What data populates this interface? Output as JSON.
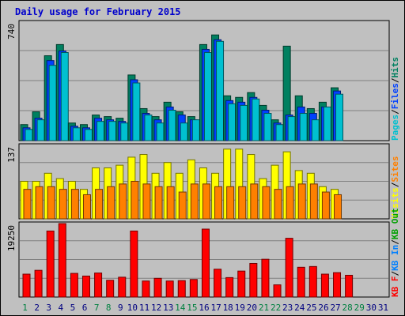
{
  "title": "Daily usage for February 2015",
  "colors": {
    "background": "#c0c0c0",
    "title": "#0000cc",
    "pages": "#00c0d0",
    "files": "#0040ff",
    "hits": "#008060",
    "visits": "#ffff00",
    "sites": "#ff8000",
    "kbytes": "#ff0000",
    "kb_in": "#0080ff",
    "kb_out": "#00a000",
    "weekday_label": "#008040",
    "weekend_label": "#000080"
  },
  "chart_data": [
    {
      "type": "bar",
      "title": "Daily usage for February 2015",
      "panel": "hits-files-pages",
      "y_max_label": "740",
      "ylim": [
        0,
        740
      ],
      "series_labels": [
        "Pages",
        "Files",
        "Hits"
      ],
      "separators": [
        "/",
        "/"
      ],
      "categories": [
        1,
        2,
        3,
        4,
        5,
        6,
        7,
        8,
        9,
        10,
        11,
        12,
        13,
        14,
        15,
        16,
        17,
        18,
        19,
        20,
        21,
        22,
        23,
        24,
        25,
        26,
        27,
        28,
        29,
        30,
        31
      ],
      "series": [
        {
          "name": "Hits",
          "values": [
            100,
            180,
            530,
            600,
            110,
            100,
            160,
            150,
            140,
            410,
            200,
            150,
            240,
            180,
            150,
            600,
            660,
            280,
            270,
            300,
            220,
            130,
            590,
            280,
            200,
            240,
            330,
            0,
            0,
            0,
            0
          ]
        },
        {
          "name": "Files",
          "values": [
            80,
            140,
            500,
            560,
            90,
            80,
            140,
            130,
            120,
            380,
            170,
            130,
            210,
            160,
            130,
            570,
            630,
            250,
            240,
            270,
            190,
            110,
            160,
            210,
            170,
            210,
            310,
            0,
            0,
            0,
            0
          ]
        },
        {
          "name": "Pages",
          "values": [
            70,
            130,
            470,
            550,
            80,
            70,
            120,
            120,
            110,
            360,
            160,
            110,
            190,
            110,
            130,
            550,
            620,
            230,
            220,
            260,
            170,
            100,
            150,
            170,
            130,
            210,
            290,
            0,
            0,
            0,
            0
          ]
        }
      ]
    },
    {
      "type": "bar",
      "panel": "visits-sites",
      "y_max_label": "137",
      "ylim": [
        0,
        137
      ],
      "series_labels": [
        "Visits",
        "Sites"
      ],
      "separators": [
        "/"
      ],
      "categories": [
        1,
        2,
        3,
        4,
        5,
        6,
        7,
        8,
        9,
        10,
        11,
        12,
        13,
        14,
        15,
        16,
        17,
        18,
        19,
        20,
        21,
        22,
        23,
        24,
        25,
        26,
        27,
        28,
        29,
        30,
        31
      ],
      "series": [
        {
          "name": "Visits",
          "values": [
            70,
            70,
            85,
            75,
            70,
            55,
            95,
            95,
            100,
            115,
            120,
            85,
            105,
            85,
            110,
            95,
            85,
            130,
            130,
            120,
            75,
            100,
            125,
            90,
            85,
            60,
            55,
            0,
            0,
            0,
            0
          ]
        },
        {
          "name": "Sites",
          "values": [
            55,
            60,
            60,
            55,
            55,
            45,
            55,
            60,
            65,
            70,
            65,
            60,
            60,
            50,
            65,
            65,
            60,
            60,
            60,
            65,
            60,
            55,
            60,
            65,
            65,
            50,
            45,
            0,
            0,
            0,
            0
          ]
        }
      ]
    },
    {
      "type": "bar",
      "panel": "kbytes",
      "y_max_label": "19250",
      "ylim": [
        0,
        19250
      ],
      "series_labels": [
        "KB F",
        "KB In",
        "KB Out"
      ],
      "separators": [
        "/",
        "/"
      ],
      "categories": [
        1,
        2,
        3,
        4,
        5,
        6,
        7,
        8,
        9,
        10,
        11,
        12,
        13,
        14,
        15,
        16,
        17,
        18,
        19,
        20,
        21,
        22,
        23,
        24,
        25,
        26,
        27,
        28,
        29,
        30,
        31
      ],
      "series": [
        {
          "name": "KB F",
          "values": [
            6000,
            7000,
            17300,
            19250,
            6200,
            5500,
            6300,
            4400,
            5200,
            17300,
            4200,
            4900,
            4200,
            4300,
            4600,
            17800,
            7300,
            5100,
            6800,
            8800,
            9900,
            3200,
            15400,
            7800,
            8000,
            6000,
            6400,
            5700,
            0,
            0,
            0
          ]
        }
      ]
    }
  ],
  "day_labels": [
    "1",
    "2",
    "3",
    "4",
    "5",
    "6",
    "7",
    "8",
    "9",
    "10",
    "11",
    "12",
    "13",
    "14",
    "15",
    "16",
    "17",
    "18",
    "19",
    "20",
    "21",
    "22",
    "23",
    "24",
    "25",
    "26",
    "27",
    "28",
    "29",
    "30",
    "31"
  ]
}
